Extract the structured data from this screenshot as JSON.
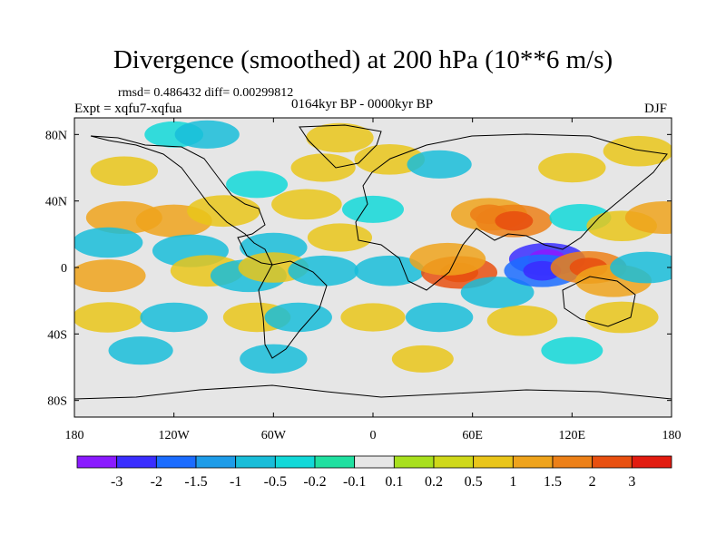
{
  "chart_data": {
    "type": "heatmap",
    "title": "Divergence (smoothed) at 200 hPa (10**6 m/s)",
    "stats_line": "rmsd= 0.486432 diff= 0.00299812",
    "experiment_label": "Expt = xqfu7-xqfua",
    "period_label": "0164kyr BP - 0000kyr BP",
    "season_label": "DJF",
    "x_axis": {
      "range": [
        -180,
        180
      ],
      "ticks": [
        {
          "value": -180,
          "label": "180"
        },
        {
          "value": -120,
          "label": "120W"
        },
        {
          "value": -60,
          "label": "60W"
        },
        {
          "value": 0,
          "label": "0"
        },
        {
          "value": 60,
          "label": "60E"
        },
        {
          "value": 120,
          "label": "120E"
        },
        {
          "value": 180,
          "label": "180"
        }
      ]
    },
    "y_axis": {
      "range": [
        -90,
        90
      ],
      "ticks": [
        {
          "value": 80,
          "label": "80N"
        },
        {
          "value": 40,
          "label": "40N"
        },
        {
          "value": 0,
          "label": "0"
        },
        {
          "value": -40,
          "label": "40S"
        },
        {
          "value": -80,
          "label": "80S"
        }
      ]
    },
    "colorbar": {
      "colors": [
        "#8a1aff",
        "#3a2eff",
        "#1b6cff",
        "#1e9ce8",
        "#19bdd9",
        "#12d8d8",
        "#20e0a0",
        "#e6e6e6",
        "#a8e01e",
        "#cfd81a",
        "#e9c51a",
        "#eea31c",
        "#ec8018",
        "#e85010",
        "#e21c10"
      ],
      "labels": [
        "-3",
        "-2",
        "-1.5",
        "-1",
        "-0.5",
        "-0.2",
        "-0.1",
        "0.1",
        "0.2",
        "0.5",
        "1",
        "1.5",
        "2",
        "3"
      ]
    },
    "blobs": [
      {
        "lon": -150,
        "lat": 30,
        "v": 1.0
      },
      {
        "lon": -120,
        "lat": 28,
        "v": 1.1
      },
      {
        "lon": -90,
        "lat": 34,
        "v": 0.9
      },
      {
        "lon": -40,
        "lat": 38,
        "v": 0.8
      },
      {
        "lon": -150,
        "lat": 58,
        "v": 0.7
      },
      {
        "lon": -70,
        "lat": 50,
        "v": -0.5
      },
      {
        "lon": -30,
        "lat": 60,
        "v": 0.6
      },
      {
        "lon": 10,
        "lat": 65,
        "v": 0.8
      },
      {
        "lon": 40,
        "lat": 62,
        "v": -0.6
      },
      {
        "lon": 120,
        "lat": 60,
        "v": 0.7
      },
      {
        "lon": 160,
        "lat": 70,
        "v": 0.8
      },
      {
        "lon": -120,
        "lat": 80,
        "v": -0.4
      },
      {
        "lon": -20,
        "lat": 78,
        "v": 0.7
      },
      {
        "lon": -100,
        "lat": 80,
        "v": -0.6
      },
      {
        "lon": -160,
        "lat": 15,
        "v": -0.8
      },
      {
        "lon": -110,
        "lat": 10,
        "v": -1.0
      },
      {
        "lon": -60,
        "lat": 12,
        "v": -0.7
      },
      {
        "lon": -20,
        "lat": 18,
        "v": 0.6
      },
      {
        "lon": 0,
        "lat": 35,
        "v": -0.5
      },
      {
        "lon": 70,
        "lat": 32,
        "v": 1.4
      },
      {
        "lon": 85,
        "lat": 28,
        "v": 1.6
      },
      {
        "lon": 125,
        "lat": 30,
        "v": -0.5
      },
      {
        "lon": 150,
        "lat": 25,
        "v": 0.8
      },
      {
        "lon": 175,
        "lat": 30,
        "v": 1.0
      },
      {
        "lon": -160,
        "lat": -5,
        "v": 1.1
      },
      {
        "lon": -100,
        "lat": -2,
        "v": 0.9
      },
      {
        "lon": -75,
        "lat": -5,
        "v": -1.0
      },
      {
        "lon": -60,
        "lat": 0,
        "v": 0.8
      },
      {
        "lon": -30,
        "lat": -2,
        "v": -0.8
      },
      {
        "lon": 10,
        "lat": -2,
        "v": -0.8
      },
      {
        "lon": 52,
        "lat": -3,
        "v": 2.2
      },
      {
        "lon": 45,
        "lat": 5,
        "v": 1.2
      },
      {
        "lon": 75,
        "lat": -15,
        "v": -0.9
      },
      {
        "lon": 105,
        "lat": 5,
        "v": -2.6
      },
      {
        "lon": 102,
        "lat": -2,
        "v": -1.8
      },
      {
        "lon": 130,
        "lat": 0,
        "v": 1.7
      },
      {
        "lon": 145,
        "lat": -8,
        "v": 1.3
      },
      {
        "lon": 165,
        "lat": 0,
        "v": -0.9
      },
      {
        "lon": -160,
        "lat": -30,
        "v": 0.8
      },
      {
        "lon": -120,
        "lat": -30,
        "v": -0.7
      },
      {
        "lon": -70,
        "lat": -30,
        "v": 0.7
      },
      {
        "lon": -45,
        "lat": -30,
        "v": -0.7
      },
      {
        "lon": 0,
        "lat": -30,
        "v": 0.6
      },
      {
        "lon": 40,
        "lat": -30,
        "v": -0.7
      },
      {
        "lon": 90,
        "lat": -32,
        "v": 0.8
      },
      {
        "lon": 150,
        "lat": -30,
        "v": 0.9
      },
      {
        "lon": -140,
        "lat": -50,
        "v": -0.6
      },
      {
        "lon": -60,
        "lat": -55,
        "v": -0.7
      },
      {
        "lon": 30,
        "lat": -55,
        "v": 0.5
      },
      {
        "lon": 120,
        "lat": -50,
        "v": -0.5
      }
    ]
  }
}
